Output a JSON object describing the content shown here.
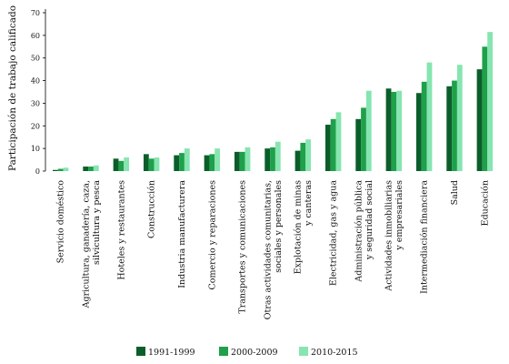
{
  "chart_data": {
    "type": "bar",
    "ylabel": "Participación de trabajo calificado",
    "xlabel": "",
    "ylim": [
      0,
      70
    ],
    "yticks": [
      0,
      10,
      20,
      30,
      40,
      50,
      60,
      70
    ],
    "grid": false,
    "legend_position": "bottom",
    "categories": [
      [
        "Servicio doméstico"
      ],
      [
        "Agricultura, ganadería, caza,",
        "silvicultura y pesca"
      ],
      [
        "Hoteles y restaurantes"
      ],
      [
        "Construcción"
      ],
      [
        "Industria manufacturera"
      ],
      [
        "Comercio y reparaciones"
      ],
      [
        "Transportes y comunicaciones"
      ],
      [
        "Otras actividades comunitarias,",
        "sociales y personales"
      ],
      [
        "Explotación de minas",
        "y canteras"
      ],
      [
        "Electricidad, gas y agua"
      ],
      [
        "Administración pública",
        "y seguridad social"
      ],
      [
        "Actividades inmobiliarias",
        "y empresariales"
      ],
      [
        "Intermediación financiera"
      ],
      [
        "Salud"
      ],
      [
        "Educación"
      ]
    ],
    "series": [
      {
        "name": "1991-1999",
        "color": "#0b5e2a",
        "values": [
          0.5,
          2,
          5.5,
          7.5,
          7,
          7,
          8.5,
          10,
          9,
          20.5,
          23,
          36.5,
          34.5,
          37.5,
          45
        ]
      },
      {
        "name": "2000-2009",
        "color": "#1fa04a",
        "values": [
          1,
          2,
          4.5,
          5.5,
          8,
          7.5,
          8.5,
          10.5,
          12.5,
          23,
          28,
          35,
          39.5,
          40,
          55
        ]
      },
      {
        "name": "2010-2015",
        "color": "#86e5b0",
        "values": [
          1.5,
          2.5,
          6,
          6,
          10,
          10,
          10.5,
          13,
          14,
          26,
          35.5,
          35.5,
          48,
          47,
          61.5
        ]
      }
    ]
  }
}
